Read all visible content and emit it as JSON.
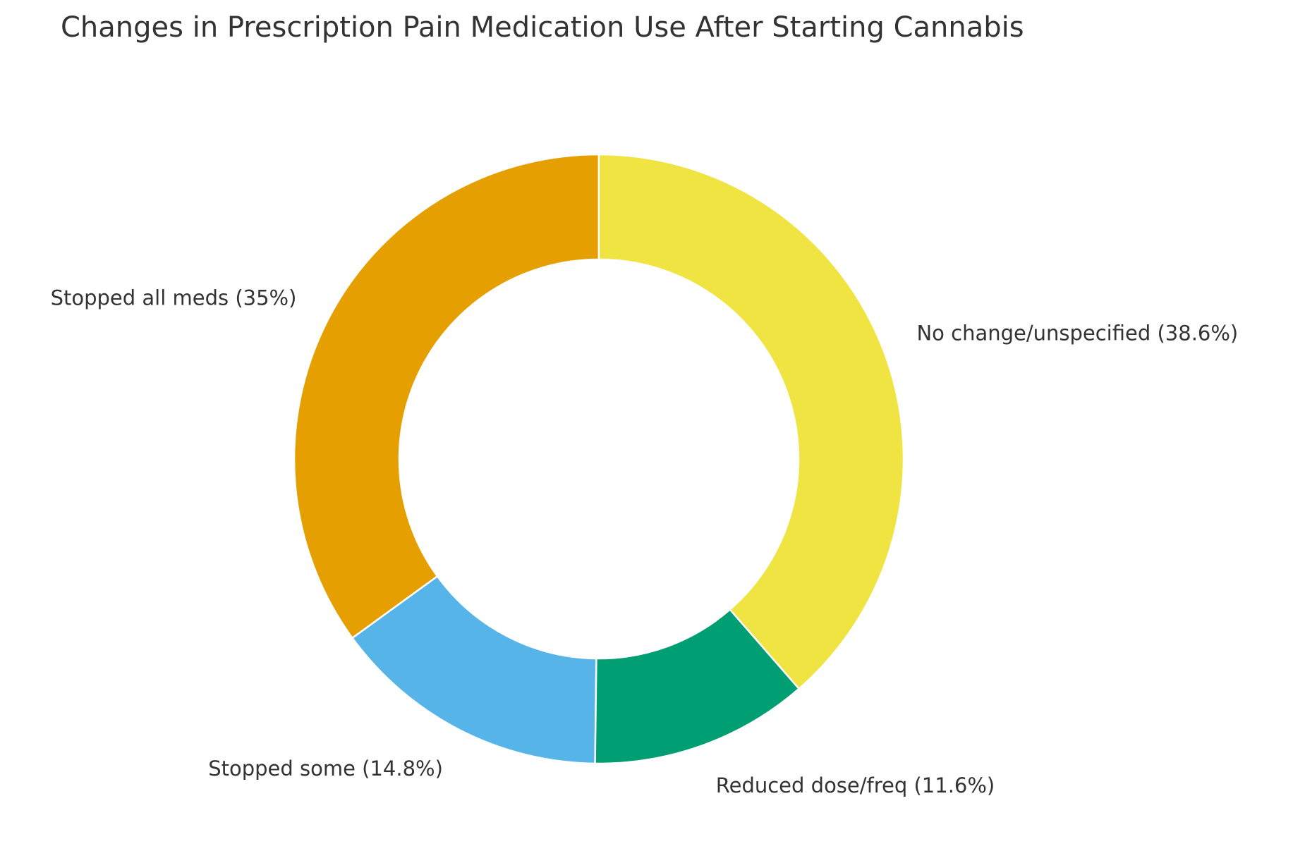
{
  "chart_data": {
    "type": "pie",
    "variant": "donut",
    "title": "Changes in Prescription Pain Medication Use After Starting Cannabis",
    "start_angle": "12 o'clock",
    "direction": "counterclockwise",
    "categories": [
      "Stopped all meds (35%)",
      "Stopped some (14.8%)",
      "Reduced dose/freq (11.6%)",
      "No change/unspecified (38.6%)"
    ],
    "values": [
      35,
      14.8,
      11.6,
      38.6
    ],
    "colors": [
      "#E69F00",
      "#56B4E9",
      "#009E73",
      "#F0E442"
    ],
    "legend": "none"
  }
}
